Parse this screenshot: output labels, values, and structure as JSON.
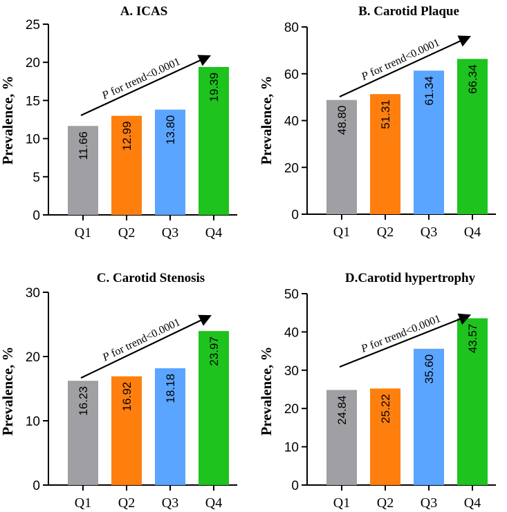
{
  "colors": {
    "Q1": "#a0a0a4",
    "Q2": "#ff7f0e",
    "Q3": "#5aa5ff",
    "Q4": "#1ec31e"
  },
  "chart_data": [
    {
      "type": "bar",
      "title": "A. ICAS",
      "ylabel": "Prevalence, %",
      "xlabel": "",
      "categories": [
        "Q1",
        "Q2",
        "Q3",
        "Q4"
      ],
      "values": [
        11.66,
        12.99,
        13.8,
        19.39
      ],
      "value_labels": [
        "11.66",
        "12.99",
        "13.80",
        "19.39"
      ],
      "ylim": [
        0,
        25
      ],
      "yticks": [
        0,
        5,
        10,
        15,
        20,
        25
      ],
      "annotation": {
        "p": "P",
        "rest": " for trend<0.0001"
      }
    },
    {
      "type": "bar",
      "title": "B. Carotid Plaque",
      "ylabel": "Prevalence, %",
      "xlabel": "",
      "categories": [
        "Q1",
        "Q2",
        "Q3",
        "Q4"
      ],
      "values": [
        48.8,
        51.31,
        61.34,
        66.34
      ],
      "value_labels": [
        "48.80",
        "51.31",
        "61.34",
        "66.34"
      ],
      "ylim": [
        0,
        80
      ],
      "yticks": [
        0,
        20,
        40,
        60,
        80
      ],
      "annotation": {
        "p": "P",
        "rest": " for trend<0.0001"
      }
    },
    {
      "type": "bar",
      "title": "C. Carotid Stenosis",
      "ylabel": "Prevalence, %",
      "xlabel": "",
      "categories": [
        "Q1",
        "Q2",
        "Q3",
        "Q4"
      ],
      "values": [
        16.23,
        16.92,
        18.18,
        23.97
      ],
      "value_labels": [
        "16.23",
        "16.92",
        "18.18",
        "23.97"
      ],
      "ylim": [
        0,
        30
      ],
      "yticks": [
        0,
        10,
        20,
        30
      ],
      "annotation": {
        "p": "P",
        "rest": " for trend<0.0001"
      }
    },
    {
      "type": "bar",
      "title": "D.Carotid hypertrophy",
      "ylabel": "Prevalence, %",
      "xlabel": "",
      "categories": [
        "Q1",
        "Q2",
        "Q3",
        "Q4"
      ],
      "values": [
        24.84,
        25.22,
        35.6,
        43.57
      ],
      "value_labels": [
        "24.84",
        "25.22",
        "35.60",
        "43.57"
      ],
      "ylim": [
        0,
        50
      ],
      "yticks": [
        0,
        10,
        20,
        30,
        40,
        50
      ],
      "annotation": {
        "p": "P",
        "rest": " for trend<0.0001"
      }
    }
  ]
}
